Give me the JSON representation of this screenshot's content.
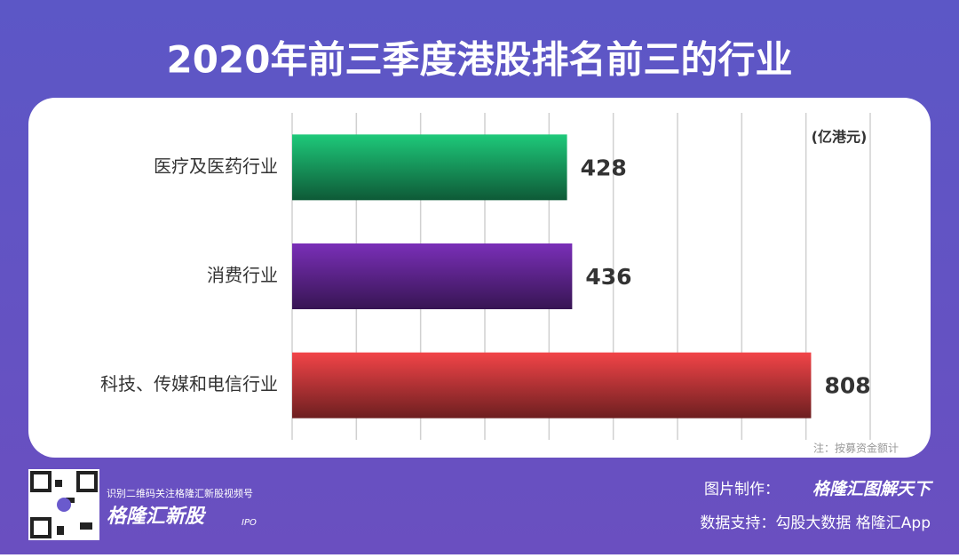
{
  "chart_data": {
    "type": "hbar",
    "title": "2020年前三季度港股排名前三的行业",
    "unit": "(亿港元)",
    "note": "注：按募资金额计",
    "categories": [
      "医疗及医药行业",
      "消费行业",
      "科技、传媒和电信行业"
    ],
    "values": [
      428,
      436,
      808
    ],
    "colors": [
      "#1ec97a",
      "#7a2fb8",
      "#f24448"
    ],
    "xlim": [
      0,
      900
    ],
    "xticks": [
      0,
      100,
      200,
      300,
      400,
      500,
      600,
      700,
      800,
      900
    ],
    "grid": true
  },
  "footer": {
    "qr_caption": "识别二维码关注格隆汇新股视频号",
    "brand": "格隆汇新股",
    "brand_tag": "IPO",
    "credit_label": "图片制作：",
    "credit": "格隆汇图解天下",
    "source": "数据支持：勾股大数据  格隆汇App"
  }
}
